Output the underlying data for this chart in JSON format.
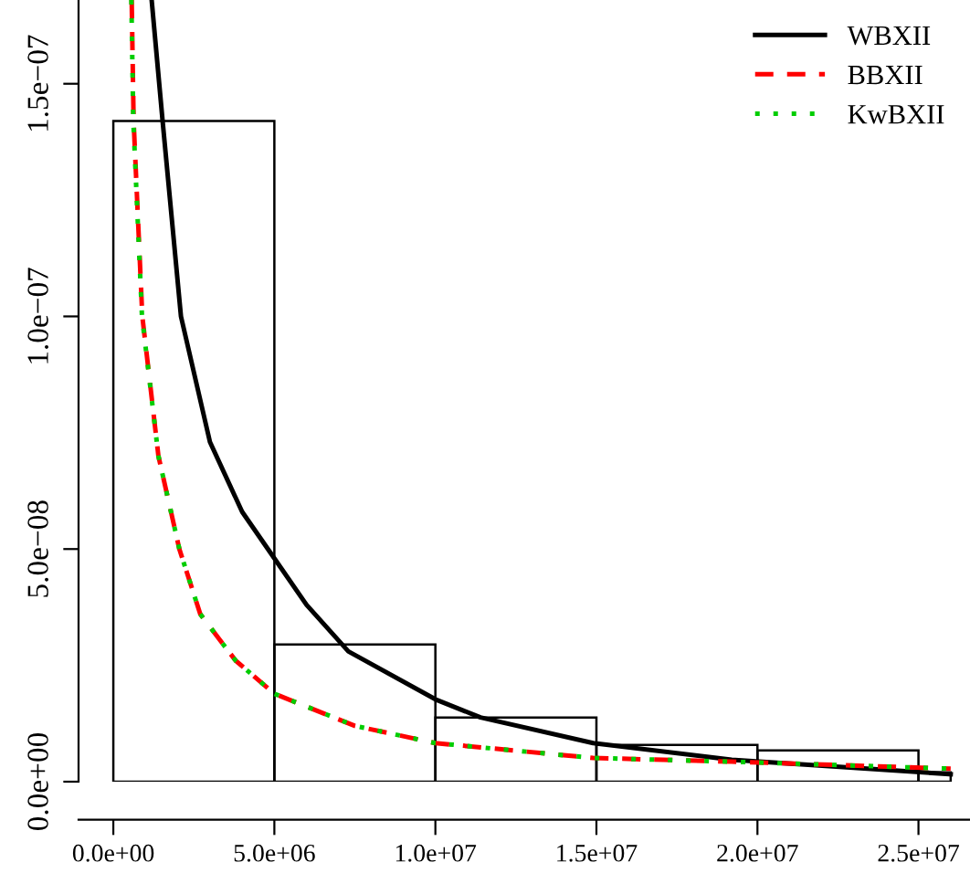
{
  "chart_data": {
    "type": "histogram",
    "bins": [
      0,
      5000000,
      10000000,
      15000000,
      20000000,
      25000000,
      26000000
    ],
    "values": [
      1.42e-07,
      2.95e-08,
      1.38e-08,
      7.9e-09,
      6.7e-09,
      2e-09
    ],
    "color": "#000000",
    "series": [
      {
        "name": "WBXII",
        "type": "line",
        "color": "#000000",
        "line_style": "solid",
        "x": [
          1190000,
          1530000,
          2100000,
          3000000,
          4000000,
          4800000,
          6000000,
          7300000,
          10000000,
          11400000,
          14900000,
          19200000,
          26000000
        ],
        "values": [
          1.68e-07,
          1.42e-07,
          1e-07,
          7.3e-08,
          5.8e-08,
          5e-08,
          3.8e-08,
          2.8e-08,
          1.77e-08,
          1.38e-08,
          8.3e-09,
          4.7e-09,
          1.6e-09
        ]
      },
      {
        "name": "BBXII",
        "type": "line",
        "color": "#ff0000",
        "line_style": "dashed",
        "x": [
          570000,
          630000,
          900000,
          1400000,
          2050000,
          2700000,
          3800000,
          5000000,
          7500000,
          10000000,
          14900000,
          19200000,
          26000000
        ],
        "values": [
          1.68e-07,
          1.42e-07,
          1e-07,
          7e-08,
          5e-08,
          3.6e-08,
          2.6e-08,
          1.89e-08,
          1.2e-08,
          8.3e-09,
          5.1e-09,
          4.3e-09,
          2.8e-09
        ]
      },
      {
        "name": "KwBXII",
        "type": "line",
        "color": "#00cd00",
        "line_style": "dotted",
        "x": [
          560000,
          620000,
          890000,
          1400000,
          2050000,
          2700000,
          3800000,
          5000000,
          7500000,
          10000000,
          14900000,
          19200000,
          26000000
        ],
        "values": [
          1.68e-07,
          1.42e-07,
          1e-07,
          7e-08,
          5e-08,
          3.6e-08,
          2.6e-08,
          1.89e-08,
          1.2e-08,
          8.3e-09,
          5.1e-09,
          4.3e-09,
          2.8e-09
        ]
      }
    ],
    "xlim": [
      -1080000,
      26600000
    ],
    "ylim": [
      0,
      1.68e-07
    ],
    "xticks": [
      {
        "value": 0,
        "label": "0.0e+00"
      },
      {
        "value": 5000000,
        "label": "5.0e+06"
      },
      {
        "value": 10000000,
        "label": "1.0e+07"
      },
      {
        "value": 15000000,
        "label": "1.5e+07"
      },
      {
        "value": 20000000,
        "label": "2.0e+07"
      },
      {
        "value": 25000000,
        "label": "2.5e+07"
      }
    ],
    "yticks": [
      {
        "value": 0,
        "label": "0.0e+00"
      },
      {
        "value": 5e-08,
        "label": "5.0e−08"
      },
      {
        "value": 1e-07,
        "label": "1.0e−07"
      },
      {
        "value": 1.5e-07,
        "label": "1.5e−07"
      }
    ],
    "legend": "top right",
    "grid": false
  }
}
